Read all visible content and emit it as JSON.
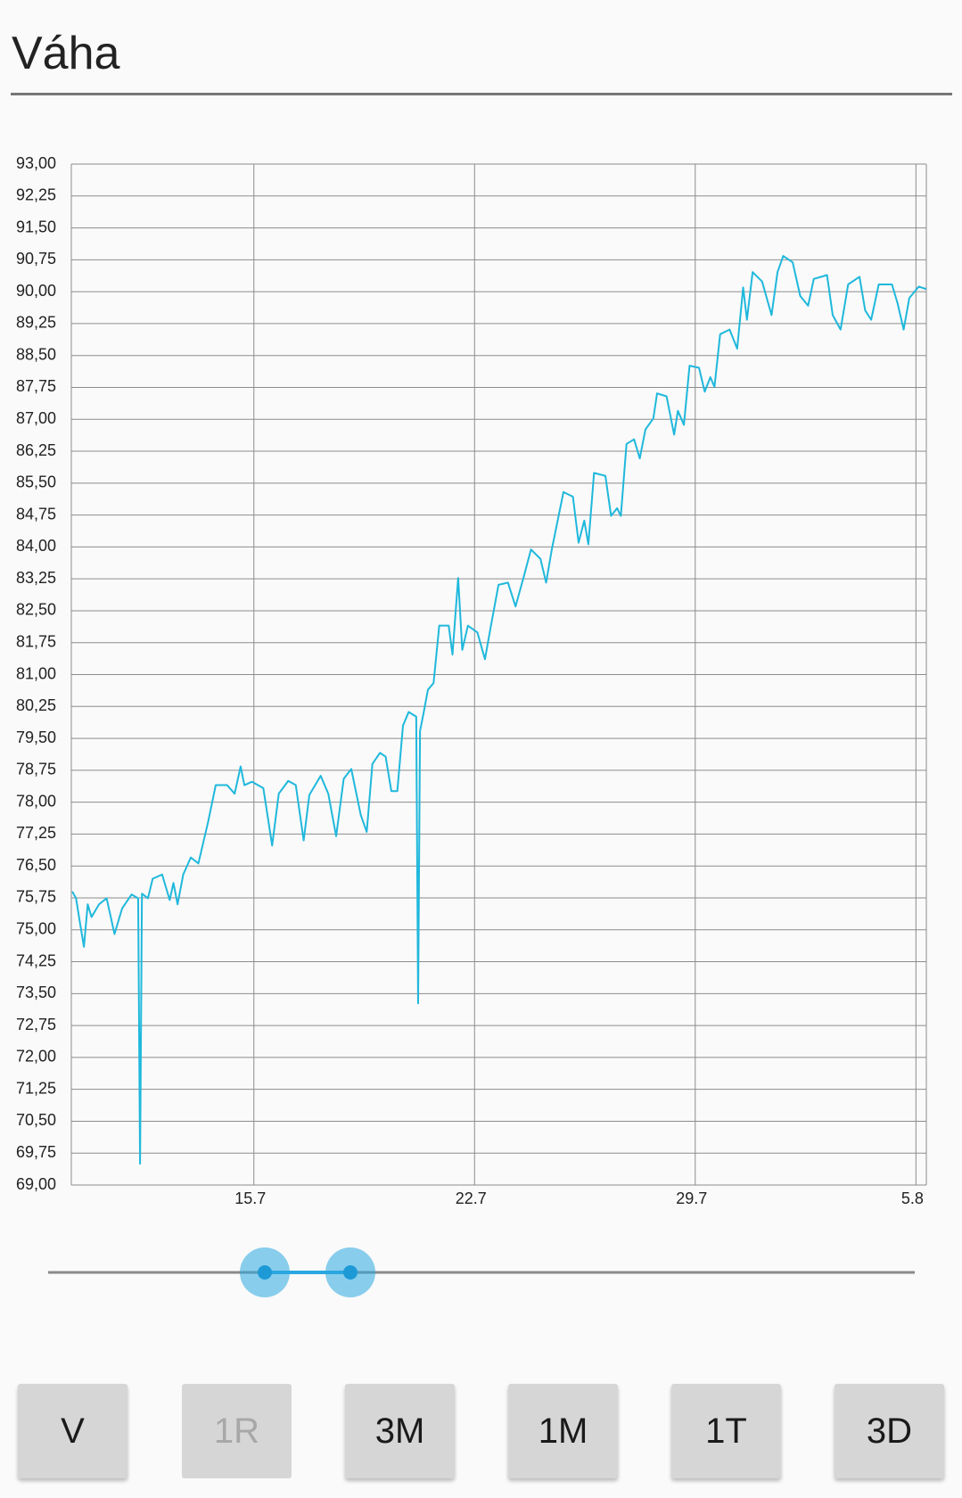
{
  "header": {
    "title": "Váha"
  },
  "chart_data": {
    "type": "line",
    "color": "#1fb8dc",
    "grid": true,
    "x": [
      9.24,
      9.36,
      9.48,
      9.61,
      9.73,
      9.85,
      10.09,
      10.33,
      10.58,
      10.82,
      11.12,
      11.33,
      11.39,
      11.45,
      11.64,
      11.79,
      12.09,
      12.33,
      12.45,
      12.58,
      12.76,
      13.0,
      13.24,
      13.55,
      13.79,
      14.15,
      14.39,
      14.58,
      14.7,
      14.94,
      15.3,
      15.58,
      15.79,
      16.09,
      16.33,
      16.58,
      16.76,
      17.12,
      17.36,
      17.61,
      17.85,
      18.09,
      18.39,
      18.58,
      18.76,
      19.0,
      19.18,
      19.36,
      19.55,
      19.73,
      19.91,
      20.15,
      20.21,
      20.27,
      20.39,
      20.52,
      20.7,
      20.88,
      21.18,
      21.3,
      21.48,
      21.61,
      21.79,
      22.09,
      22.33,
      22.52,
      22.76,
      23.06,
      23.3,
      23.55,
      23.79,
      24.09,
      24.27,
      24.45,
      24.82,
      25.12,
      25.3,
      25.48,
      25.61,
      25.79,
      26.15,
      26.33,
      26.52,
      26.64,
      26.82,
      27.06,
      27.24,
      27.42,
      27.67,
      27.79,
      28.09,
      28.33,
      28.45,
      28.64,
      28.82,
      29.12,
      29.3,
      29.48,
      29.61,
      29.79,
      30.09,
      30.33,
      30.52,
      30.64,
      30.82,
      31.12,
      31.42,
      31.61,
      31.79,
      32.09,
      32.33,
      32.58,
      32.76,
      33.18,
      33.36,
      33.61,
      33.85,
      34.21,
      34.39,
      34.58,
      34.82,
      35.24,
      35.42,
      35.61,
      35.79,
      36.09,
      36.33
    ],
    "values": [
      75.9,
      75.74,
      75.18,
      74.6,
      75.6,
      75.3,
      75.6,
      75.74,
      74.9,
      75.5,
      75.83,
      75.74,
      69.5,
      75.85,
      75.74,
      76.2,
      76.3,
      75.7,
      76.1,
      75.6,
      76.3,
      76.7,
      76.56,
      77.54,
      78.4,
      78.4,
      78.2,
      78.84,
      78.4,
      78.48,
      78.33,
      76.98,
      78.2,
      78.5,
      78.4,
      77.1,
      78.17,
      78.62,
      78.2,
      77.2,
      78.55,
      78.78,
      77.7,
      77.3,
      78.9,
      79.16,
      79.07,
      78.26,
      78.26,
      79.8,
      80.12,
      80.01,
      73.27,
      79.67,
      80.12,
      80.64,
      80.8,
      82.15,
      82.15,
      81.47,
      83.27,
      81.58,
      82.15,
      81.99,
      81.36,
      82.15,
      83.11,
      83.16,
      82.6,
      83.27,
      83.94,
      83.72,
      83.16,
      83.94,
      85.29,
      85.18,
      84.1,
      84.62,
      84.06,
      85.74,
      85.67,
      84.73,
      84.91,
      84.73,
      86.42,
      86.53,
      86.08,
      86.76,
      87.02,
      87.61,
      87.54,
      86.64,
      87.2,
      86.87,
      88.26,
      88.21,
      87.65,
      87.99,
      87.76,
      89.0,
      89.11,
      88.66,
      90.1,
      89.34,
      90.46,
      90.24,
      89.45,
      90.46,
      90.84,
      90.69,
      89.9,
      89.67,
      90.3,
      90.39,
      89.45,
      89.11,
      90.17,
      90.35,
      89.56,
      89.34,
      90.17,
      90.17,
      89.72,
      89.11,
      89.85,
      90.12,
      90.06
    ],
    "xlim": [
      9.21,
      36.33
    ],
    "xticks": [
      {
        "value": 15,
        "label": "15.7"
      },
      {
        "value": 22,
        "label": "22.7"
      },
      {
        "value": 29,
        "label": "29.7"
      },
      {
        "value": 36,
        "label": "5.8"
      }
    ],
    "ylim": [
      69,
      93
    ],
    "yticks": [
      {
        "value": 69,
        "label": "69,00"
      },
      {
        "value": 69.75,
        "label": "69,75"
      },
      {
        "value": 70.5,
        "label": "70,50"
      },
      {
        "value": 71.25,
        "label": "71,25"
      },
      {
        "value": 72,
        "label": "72,00"
      },
      {
        "value": 72.75,
        "label": "72,75"
      },
      {
        "value": 73.5,
        "label": "73,50"
      },
      {
        "value": 74.25,
        "label": "74,25"
      },
      {
        "value": 75,
        "label": "75,00"
      },
      {
        "value": 75.75,
        "label": "75,75"
      },
      {
        "value": 76.5,
        "label": "76,50"
      },
      {
        "value": 77.25,
        "label": "77,25"
      },
      {
        "value": 78,
        "label": "78,00"
      },
      {
        "value": 78.75,
        "label": "78,75"
      },
      {
        "value": 79.5,
        "label": "79,50"
      },
      {
        "value": 80.25,
        "label": "80,25"
      },
      {
        "value": 81,
        "label": "81,00"
      },
      {
        "value": 81.75,
        "label": "81,75"
      },
      {
        "value": 82.5,
        "label": "82,50"
      },
      {
        "value": 83.25,
        "label": "83,25"
      },
      {
        "value": 84,
        "label": "84,00"
      },
      {
        "value": 84.75,
        "label": "84,75"
      },
      {
        "value": 85.5,
        "label": "85,50"
      },
      {
        "value": 86.25,
        "label": "86,25"
      },
      {
        "value": 87,
        "label": "87,00"
      },
      {
        "value": 87.75,
        "label": "87,75"
      },
      {
        "value": 88.5,
        "label": "88,50"
      },
      {
        "value": 89.25,
        "label": "89,25"
      },
      {
        "value": 90,
        "label": "90,00"
      },
      {
        "value": 90.75,
        "label": "90,75"
      },
      {
        "value": 91.5,
        "label": "91,50"
      },
      {
        "value": 92.25,
        "label": "92,25"
      },
      {
        "value": 93,
        "label": "93,00"
      }
    ]
  },
  "buttons": [
    "V",
    "1R",
    "3M",
    "1M",
    "1T",
    "3D"
  ]
}
